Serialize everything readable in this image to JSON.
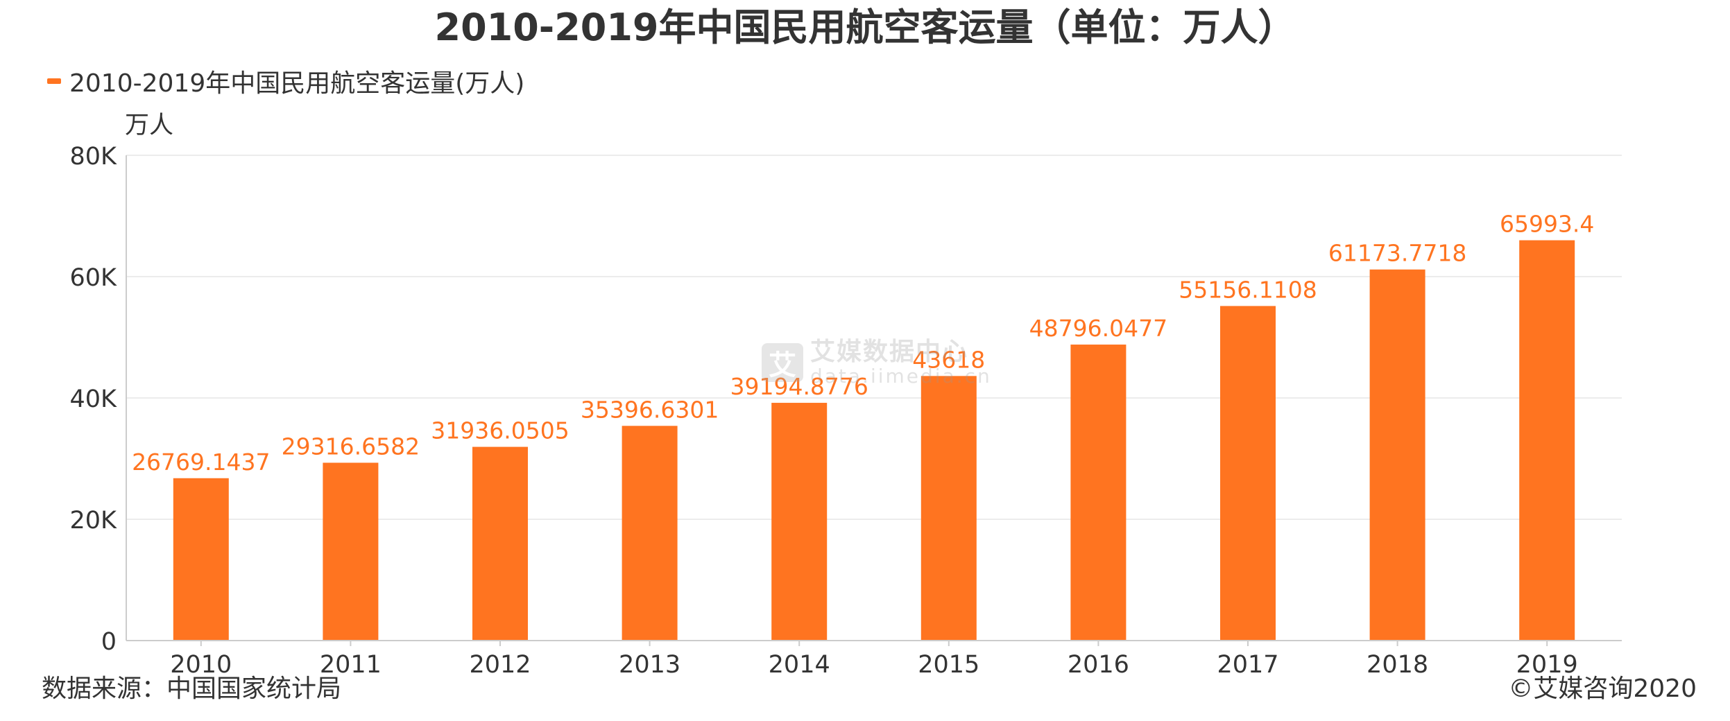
{
  "title": "2010-2019年中国民用航空客运量（单位：万人）",
  "legend_label": "2010-2019年中国民用航空客运量(万人)",
  "y_unit": "万人",
  "source": "数据来源：中国国家统计局",
  "copyright": "©艾媒咨询2020",
  "watermark": {
    "logo": "艾",
    "name": "艾媒数据中心",
    "url": "data.iimedia.cn"
  },
  "colors": {
    "bar": "#FF7420",
    "label": "#FF7420",
    "grid": "#ECECEC",
    "axis": "#CCCCCC",
    "text": "#333333"
  },
  "chart_data": {
    "type": "bar",
    "title": "2010-2019年中国民用航空客运量（单位：万人）",
    "xlabel": "",
    "ylabel": "万人",
    "categories": [
      "2010",
      "2011",
      "2012",
      "2013",
      "2014",
      "2015",
      "2016",
      "2017",
      "2018",
      "2019"
    ],
    "series": [
      {
        "name": "2010-2019年中国民用航空客运量(万人)",
        "values": [
          26769.1437,
          29316.6582,
          31936.0505,
          35396.6301,
          39194.8776,
          43618,
          48796.0477,
          55156.1108,
          61173.7718,
          65993.4
        ],
        "labels": [
          "26769.1437",
          "29316.6582",
          "31936.0505",
          "35396.6301",
          "39194.8776",
          "43618",
          "48796.0477",
          "55156.1108",
          "61173.7718",
          "65993.4"
        ]
      }
    ],
    "ylim": [
      0,
      80000
    ],
    "yticks": [
      0,
      20000,
      40000,
      60000,
      80000
    ],
    "ytick_labels": [
      "0",
      "20K",
      "40K",
      "60K",
      "80K"
    ],
    "grid": true,
    "legend_position": "top-left"
  }
}
